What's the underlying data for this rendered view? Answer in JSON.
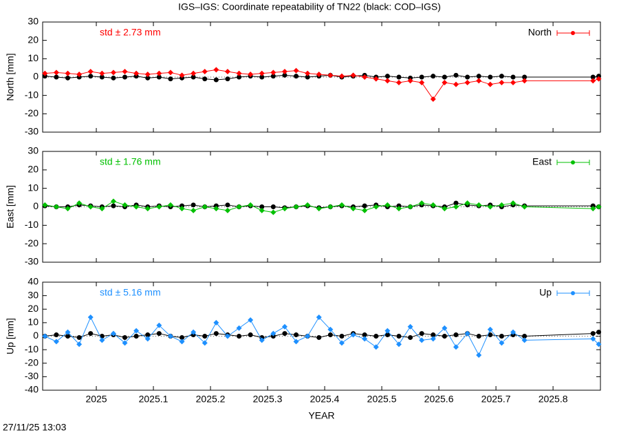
{
  "title": "IGS–IGS: Coordinate repeatability of TN22 (black: COD–IGS)",
  "timestamp": "27/11/25 13:03",
  "chart_data": [
    {
      "type": "line",
      "ylabel": "North [mm]",
      "annotation": "std ± 2.73 mm",
      "legend": "top right",
      "xlim": [
        2024.906,
        2025.883
      ],
      "xticks": [
        2025,
        2025.1,
        2025.2,
        2025.3,
        2025.4,
        2025.5,
        2025.6,
        2025.7,
        2025.8
      ],
      "ylim": [
        -30,
        30
      ],
      "yticks": [
        -30,
        -20,
        -10,
        0,
        10,
        20,
        30
      ],
      "x": [
        2024.91,
        2024.93,
        2024.95,
        2024.97,
        2024.99,
        2025.01,
        2025.03,
        2025.05,
        2025.07,
        2025.09,
        2025.11,
        2025.13,
        2025.15,
        2025.17,
        2025.19,
        2025.21,
        2025.23,
        2025.25,
        2025.27,
        2025.29,
        2025.31,
        2025.33,
        2025.35,
        2025.37,
        2025.39,
        2025.41,
        2025.43,
        2025.45,
        2025.47,
        2025.49,
        2025.51,
        2025.53,
        2025.55,
        2025.57,
        2025.59,
        2025.61,
        2025.63,
        2025.65,
        2025.67,
        2025.69,
        2025.71,
        2025.73,
        2025.75,
        2025.87,
        2025.88
      ],
      "series": [
        {
          "color": "#000000",
          "values": [
            0.5,
            0,
            -0.5,
            0,
            0.5,
            0,
            -0.5,
            0,
            0.5,
            -0.5,
            0,
            -1,
            -0.5,
            0,
            -1,
            -1.5,
            -1,
            0,
            0.5,
            0,
            0.5,
            1,
            0.5,
            0,
            0.5,
            1,
            0,
            0.5,
            1,
            0,
            0.5,
            0,
            -0.5,
            0,
            0.5,
            0,
            1,
            0,
            0.5,
            0,
            0.5,
            0,
            0,
            0,
            0.5
          ]
        },
        {
          "name": "North",
          "color": "#ff0000",
          "values": [
            2,
            2.5,
            2,
            1.5,
            3,
            2,
            2.5,
            3,
            2,
            1.5,
            2,
            2.5,
            1,
            2,
            3,
            4,
            3,
            2,
            1.5,
            2,
            2.5,
            3,
            3.5,
            2,
            1.5,
            1,
            0.5,
            1,
            0,
            -1,
            -2,
            -3,
            -2,
            -3,
            -12,
            -3,
            -4,
            -3,
            -2,
            -4,
            -3,
            -3,
            -2,
            -2,
            -1
          ]
        }
      ]
    },
    {
      "type": "line",
      "ylabel": "East [mm]",
      "annotation": "std ± 1.76 mm",
      "legend": "top right",
      "xlim": [
        2024.906,
        2025.883
      ],
      "xticks": [
        2025,
        2025.1,
        2025.2,
        2025.3,
        2025.4,
        2025.5,
        2025.6,
        2025.7,
        2025.8
      ],
      "ylim": [
        -30,
        30
      ],
      "yticks": [
        -30,
        -20,
        -10,
        0,
        10,
        20,
        30
      ],
      "x": [
        2024.91,
        2024.93,
        2024.95,
        2024.97,
        2024.99,
        2025.01,
        2025.03,
        2025.05,
        2025.07,
        2025.09,
        2025.11,
        2025.13,
        2025.15,
        2025.17,
        2025.19,
        2025.21,
        2025.23,
        2025.25,
        2025.27,
        2025.29,
        2025.31,
        2025.33,
        2025.35,
        2025.37,
        2025.39,
        2025.41,
        2025.43,
        2025.45,
        2025.47,
        2025.49,
        2025.51,
        2025.53,
        2025.55,
        2025.57,
        2025.59,
        2025.61,
        2025.63,
        2025.65,
        2025.67,
        2025.69,
        2025.71,
        2025.73,
        2025.75,
        2025.87,
        2025.88
      ],
      "series": [
        {
          "color": "#000000",
          "values": [
            0.5,
            0,
            0,
            1,
            0.5,
            0,
            0.5,
            0,
            1,
            0,
            0.5,
            0,
            0.5,
            1,
            0,
            0.5,
            1,
            0,
            0.5,
            0,
            0,
            -0.5,
            0,
            0.5,
            -0.5,
            0,
            0.5,
            0,
            0.5,
            1,
            0,
            0.5,
            0,
            1,
            0.5,
            0,
            2,
            1,
            0.5,
            1,
            0,
            1,
            0.5,
            0.5,
            0
          ]
        },
        {
          "name": "East",
          "color": "#00c000",
          "values": [
            1,
            0,
            -1,
            2,
            0,
            -1,
            3,
            1,
            0,
            -1,
            0,
            1,
            -1,
            -2,
            0,
            -1,
            -2,
            0,
            1,
            -2,
            -3,
            -1,
            0,
            1,
            -1,
            0,
            1,
            -1,
            -2,
            0,
            1,
            -1,
            0,
            2,
            1,
            -1,
            0,
            2,
            1,
            0,
            1,
            2,
            0,
            -1,
            0
          ]
        }
      ]
    },
    {
      "type": "line",
      "ylabel": "Up [mm]",
      "xlabel": "YEAR",
      "annotation": "std ± 5.16 mm",
      "legend": "top right",
      "xlim": [
        2024.906,
        2025.883
      ],
      "xticks": [
        2025,
        2025.1,
        2025.2,
        2025.3,
        2025.4,
        2025.5,
        2025.6,
        2025.7,
        2025.8
      ],
      "ylim": [
        -40,
        40
      ],
      "yticks": [
        -40,
        -30,
        -20,
        -10,
        0,
        10,
        20,
        30,
        40
      ],
      "x": [
        2024.91,
        2024.93,
        2024.95,
        2024.97,
        2024.99,
        2025.01,
        2025.03,
        2025.05,
        2025.07,
        2025.09,
        2025.11,
        2025.13,
        2025.15,
        2025.17,
        2025.19,
        2025.21,
        2025.23,
        2025.25,
        2025.27,
        2025.29,
        2025.31,
        2025.33,
        2025.35,
        2025.37,
        2025.39,
        2025.41,
        2025.43,
        2025.45,
        2025.47,
        2025.49,
        2025.51,
        2025.53,
        2025.55,
        2025.57,
        2025.59,
        2025.61,
        2025.63,
        2025.65,
        2025.67,
        2025.69,
        2025.71,
        2025.73,
        2025.75,
        2025.87,
        2025.88
      ],
      "series": [
        {
          "color": "#000000",
          "values": [
            0,
            1,
            0,
            -1,
            2,
            0,
            1,
            -1,
            0,
            1,
            2,
            0,
            -1,
            1,
            0,
            2,
            1,
            0,
            1,
            -1,
            0,
            2,
            1,
            0,
            -1,
            1,
            0,
            2,
            1,
            0,
            1,
            0,
            -1,
            2,
            1,
            0,
            1,
            2,
            0,
            1,
            0,
            1,
            0,
            2,
            3
          ]
        },
        {
          "name": "Up",
          "color": "#1e90ff",
          "values": [
            0,
            -4,
            3,
            -6,
            14,
            -3,
            2,
            -5,
            4,
            -2,
            8,
            0,
            -4,
            3,
            -5,
            10,
            0,
            6,
            12,
            -3,
            2,
            7,
            -4,
            0,
            14,
            5,
            -5,
            1,
            -2,
            -8,
            4,
            -6,
            7,
            -3,
            -2,
            6,
            -8,
            2,
            -14,
            5,
            -5,
            3,
            -3,
            -2,
            -6
          ]
        }
      ]
    }
  ]
}
